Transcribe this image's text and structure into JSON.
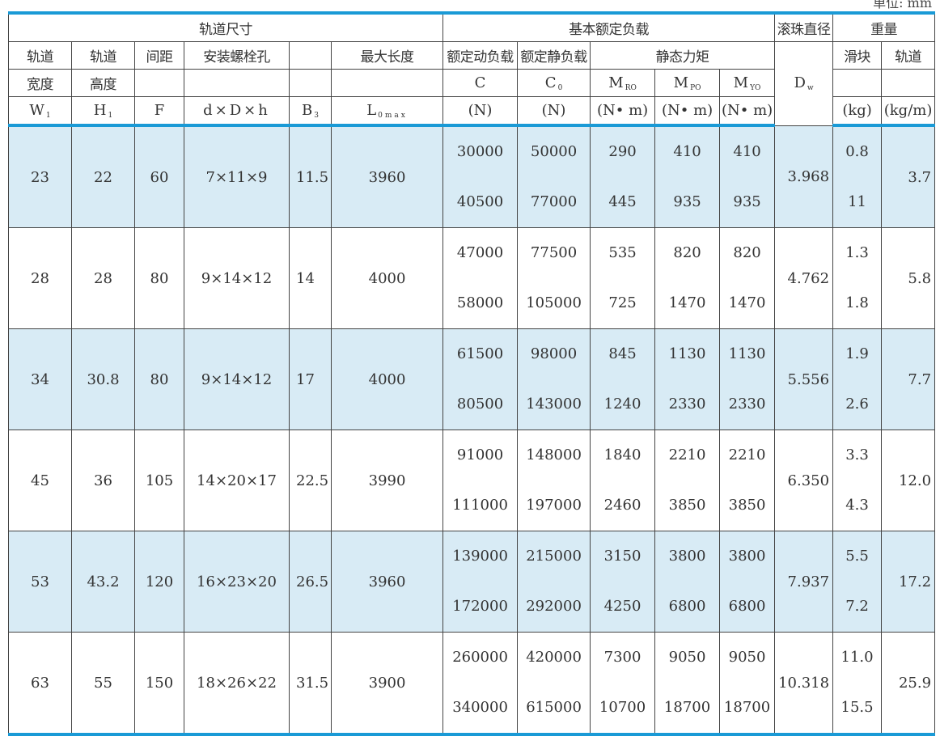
{
  "unit_note": "单位: mm",
  "headers": {
    "group_rail": "轨道尺寸",
    "group_load": "基本额定负载",
    "group_ball": "滚珠直径",
    "group_weight": "重量",
    "rail_width": [
      "轨道",
      "宽度",
      "W"
    ],
    "rail_width_sub": "1",
    "rail_height": [
      "轨道",
      "高度",
      "H"
    ],
    "rail_height_sub": "1",
    "pitch": [
      "间距",
      "F"
    ],
    "bolt": [
      "安装螺栓孔",
      "d×D×h"
    ],
    "b3": "B",
    "b3_sub": "3",
    "maxlen": [
      "最大长度",
      "L"
    ],
    "maxlen_sub": "0max",
    "dyn_label": "额定动负载",
    "stat_label": "额定静负载",
    "moment_label": "静态力矩",
    "c": [
      "C",
      "(N)"
    ],
    "c0": [
      "C",
      "(N)"
    ],
    "c0_sub": "0",
    "mr": [
      "M",
      "(N• m)"
    ],
    "mr_sub": "RO",
    "mp": [
      "M",
      "(N• m)"
    ],
    "mp_sub": "PO",
    "my": [
      "M",
      "(N• m)"
    ],
    "my_sub": "YO",
    "dw": "D",
    "dw_sub": "w",
    "slider": [
      "滑块",
      "(kg)"
    ],
    "rail": [
      "轨道",
      "(kg/m)"
    ]
  },
  "rows": [
    {
      "w": "23",
      "h": "22",
      "f": "60",
      "bolt": "7×11×9",
      "b3": "11.5",
      "l": "3960",
      "c": [
        "30000",
        "40500"
      ],
      "c0": [
        "50000",
        "77000"
      ],
      "mr": [
        "290",
        "445"
      ],
      "mp": [
        "410",
        "935"
      ],
      "my": [
        "410",
        "935"
      ],
      "dw": "3.968",
      "slider": [
        "0.8",
        "11"
      ],
      "rail": "3.7"
    },
    {
      "w": "28",
      "h": "28",
      "f": "80",
      "bolt": "9×14×12",
      "b3": "14",
      "l": "4000",
      "c": [
        "47000",
        "58000"
      ],
      "c0": [
        "77500",
        "105000"
      ],
      "mr": [
        "535",
        "725"
      ],
      "mp": [
        "820",
        "1470"
      ],
      "my": [
        "820",
        "1470"
      ],
      "dw": "4.762",
      "slider": [
        "1.3",
        "1.8"
      ],
      "rail": "5.8"
    },
    {
      "w": "34",
      "h": "30.8",
      "f": "80",
      "bolt": "9×14×12",
      "b3": "17",
      "l": "4000",
      "c": [
        "61500",
        "80500"
      ],
      "c0": [
        "98000",
        "143000"
      ],
      "mr": [
        "845",
        "1240"
      ],
      "mp": [
        "1130",
        "2330"
      ],
      "my": [
        "1130",
        "2330"
      ],
      "dw": "5.556",
      "slider": [
        "1.9",
        "2.6"
      ],
      "rail": "7.7"
    },
    {
      "w": "45",
      "h": "36",
      "f": "105",
      "bolt": "14×20×17",
      "b3": "22.5",
      "l": "3990",
      "c": [
        "91000",
        "111000"
      ],
      "c0": [
        "148000",
        "197000"
      ],
      "mr": [
        "1840",
        "2460"
      ],
      "mp": [
        "2210",
        "3850"
      ],
      "my": [
        "2210",
        "3850"
      ],
      "dw": "6.350",
      "slider": [
        "3.3",
        "4.3"
      ],
      "rail": "12.0"
    },
    {
      "w": "53",
      "h": "43.2",
      "f": "120",
      "bolt": "16×23×20",
      "b3": "26.5",
      "l": "3960",
      "c": [
        "139000",
        "172000"
      ],
      "c0": [
        "215000",
        "292000"
      ],
      "mr": [
        "3150",
        "4250"
      ],
      "mp": [
        "3800",
        "6800"
      ],
      "my": [
        "3800",
        "6800"
      ],
      "dw": "7.937",
      "slider": [
        "5.5",
        "7.2"
      ],
      "rail": "17.2"
    },
    {
      "w": "63",
      "h": "55",
      "f": "150",
      "bolt": "18×26×22",
      "b3": "31.5",
      "l": "3900",
      "c": [
        "260000",
        "340000"
      ],
      "c0": [
        "420000",
        "615000"
      ],
      "mr": [
        "7300",
        "10700"
      ],
      "mp": [
        "9050",
        "18700"
      ],
      "my": [
        "9050",
        "18700"
      ],
      "dw": "10.318",
      "slider": [
        "11.0",
        "15.5"
      ],
      "rail": "25.9"
    }
  ],
  "colors": {
    "accent_line": "#1a9ad6",
    "row_shade": "#d8ebf5"
  }
}
